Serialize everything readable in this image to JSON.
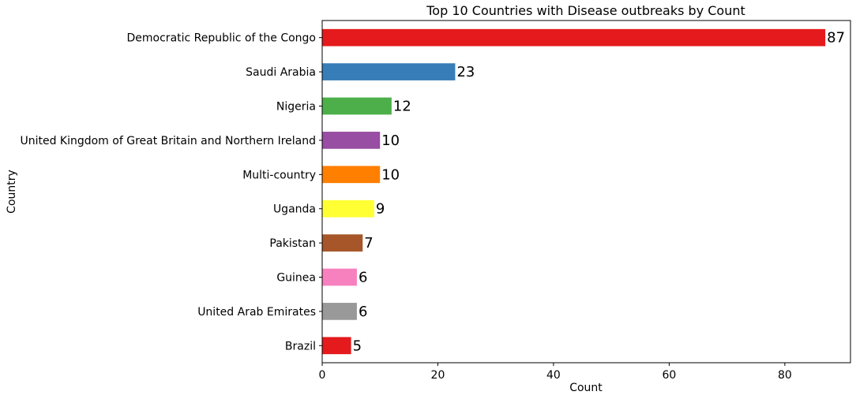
{
  "chart_data": {
    "type": "bar",
    "orientation": "horizontal",
    "title": "Top 10 Countries with Disease outbreaks by Count",
    "xlabel": "Count",
    "ylabel": "Country",
    "xlim": [
      0,
      91.35
    ],
    "xticks": [
      0,
      20,
      40,
      60,
      80
    ],
    "grid": false,
    "categories": [
      "Democratic Republic of the Congo",
      "Saudi Arabia",
      "Nigeria",
      "United Kingdom of Great Britain and Northern Ireland",
      "Multi-country",
      "Uganda",
      "Pakistan",
      "Guinea",
      "United Arab Emirates",
      "Brazil"
    ],
    "values": [
      87,
      23,
      12,
      10,
      10,
      9,
      7,
      6,
      6,
      5
    ],
    "colors": [
      "#e41a1c",
      "#377eb8",
      "#4daf4a",
      "#984ea3",
      "#ff7f00",
      "#ffff33",
      "#a65628",
      "#f781bf",
      "#999999",
      "#e41a1c"
    ]
  }
}
